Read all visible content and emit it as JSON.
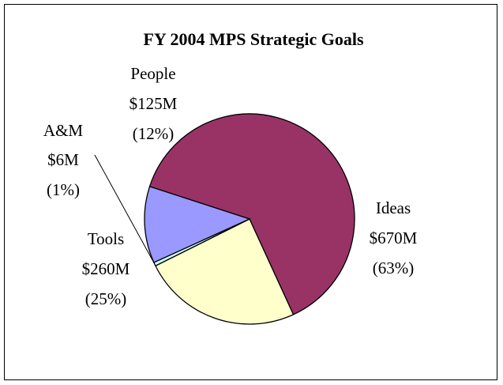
{
  "chart_data": {
    "type": "pie",
    "title": "FY 2004 MPS Strategic Goals",
    "slices": [
      {
        "name": "Ideas",
        "amount": "$670M",
        "percent": "(63%)",
        "value": 670,
        "color": "#993366"
      },
      {
        "name": "Tools",
        "amount": "$260M",
        "percent": "(25%)",
        "value": 260,
        "color": "#FFFFCC"
      },
      {
        "name": "A&M",
        "amount": "$6M",
        "percent": "(1%)",
        "value": 6,
        "color": "#CCFFFF"
      },
      {
        "name": "People",
        "amount": "$125M",
        "percent": "(12%)",
        "value": 125,
        "color": "#9999FF"
      }
    ],
    "legend": "none"
  }
}
